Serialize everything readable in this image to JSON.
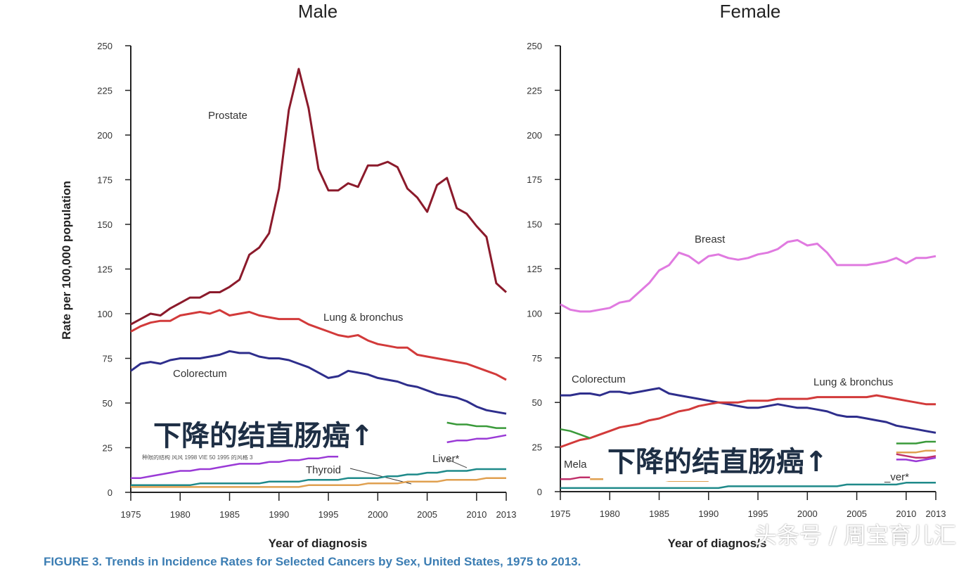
{
  "chart_data": [
    {
      "type": "line",
      "title": "Male",
      "xlabel": "Year of diagnosis",
      "ylabel": "Rate per 100,000 population",
      "xlim": [
        1975,
        2013
      ],
      "ylim": [
        0,
        250
      ],
      "xticks": [
        "1975",
        "1980",
        "1985",
        "1990",
        "1995",
        "2000",
        "2005",
        "2010",
        "2013"
      ],
      "yticks": [
        "0",
        "25",
        "50",
        "75",
        "100",
        "125",
        "150",
        "175",
        "200",
        "225",
        "250"
      ],
      "series": [
        {
          "name": "Prostate",
          "color": "#8b1a2b",
          "values": [
            94,
            97,
            100,
            99,
            103,
            106,
            109,
            109,
            112,
            112,
            115,
            119,
            133,
            137,
            145,
            170,
            214,
            237,
            215,
            181,
            169,
            169,
            173,
            171,
            183,
            183,
            185,
            182,
            170,
            165,
            157,
            172,
            176,
            159,
            156,
            149,
            143,
            117,
            112
          ]
        },
        {
          "name": "Lung & bronchus",
          "color": "#d23a3a",
          "values": [
            90,
            93,
            95,
            96,
            96,
            99,
            100,
            101,
            100,
            102,
            99,
            100,
            101,
            99,
            98,
            97,
            97,
            97,
            94,
            92,
            90,
            88,
            87,
            88,
            85,
            83,
            82,
            81,
            81,
            77,
            76,
            75,
            74,
            73,
            72,
            70,
            68,
            66,
            63
          ]
        },
        {
          "name": "Colorectum",
          "color": "#2e2e8c",
          "values": [
            68,
            72,
            73,
            72,
            74,
            75,
            75,
            75,
            76,
            77,
            79,
            78,
            78,
            76,
            75,
            75,
            74,
            72,
            70,
            67,
            64,
            65,
            68,
            67,
            66,
            64,
            63,
            62,
            60,
            59,
            57,
            55,
            54,
            53,
            51,
            48,
            46,
            45,
            44
          ]
        },
        {
          "color": "#3a9a3a",
          "values": [
            null,
            null,
            null,
            null,
            null,
            null,
            null,
            null,
            null,
            null,
            null,
            null,
            null,
            null,
            null,
            null,
            null,
            null,
            null,
            null,
            null,
            null,
            null,
            null,
            null,
            null,
            null,
            null,
            null,
            null,
            null,
            null,
            39,
            38,
            38,
            37,
            37,
            36,
            36
          ]
        },
        {
          "color": "#9a3ad6",
          "values": [
            8,
            8,
            9,
            10,
            11,
            12,
            12,
            13,
            13,
            14,
            15,
            16,
            16,
            16,
            17,
            17,
            18,
            18,
            19,
            19,
            20,
            20,
            null,
            null,
            null,
            null,
            null,
            null,
            null,
            null,
            null,
            null,
            28,
            29,
            29,
            30,
            30,
            31,
            32
          ]
        },
        {
          "name": "Liver*",
          "color": "#1f8a8a",
          "values": [
            4,
            4,
            4,
            4,
            4,
            4,
            4,
            5,
            5,
            5,
            5,
            5,
            5,
            5,
            6,
            6,
            6,
            6,
            7,
            7,
            7,
            7,
            8,
            8,
            8,
            8,
            9,
            9,
            10,
            10,
            11,
            11,
            12,
            12,
            12,
            13,
            13,
            13,
            13
          ]
        },
        {
          "name": "Thyroid",
          "color": "#e0a050",
          "values": [
            3,
            3,
            3,
            3,
            3,
            3,
            3,
            3,
            3,
            3,
            3,
            3,
            3,
            3,
            3,
            3,
            3,
            3,
            4,
            4,
            4,
            4,
            4,
            4,
            5,
            5,
            5,
            5,
            6,
            6,
            6,
            6,
            7,
            7,
            7,
            7,
            8,
            8,
            8
          ]
        }
      ]
    },
    {
      "type": "line",
      "title": "Female",
      "xlabel": "Year of diagnos/s",
      "ylabel": "",
      "xlim": [
        1975,
        2013
      ],
      "ylim": [
        0,
        250
      ],
      "xticks": [
        "1975",
        "1980",
        "1985",
        "1990",
        "1995",
        "2000",
        "2005",
        "2010",
        "2013"
      ],
      "yticks": [
        "0",
        "25",
        "50",
        "75",
        "100",
        "125",
        "150",
        "175",
        "200",
        "225",
        "250"
      ],
      "series": [
        {
          "name": "Breast",
          "color": "#e07ae0",
          "values": [
            105,
            102,
            101,
            101,
            102,
            103,
            106,
            107,
            112,
            117,
            124,
            127,
            134,
            132,
            128,
            132,
            133,
            131,
            130,
            131,
            133,
            134,
            136,
            140,
            141,
            138,
            139,
            134,
            127,
            127,
            127,
            127,
            128,
            129,
            131,
            128,
            131,
            131,
            132
          ]
        },
        {
          "name": "Colorectum",
          "color": "#2e2e8c",
          "values": [
            54,
            54,
            55,
            55,
            54,
            56,
            56,
            55,
            56,
            57,
            58,
            55,
            54,
            53,
            52,
            51,
            50,
            49,
            48,
            47,
            47,
            48,
            49,
            48,
            47,
            47,
            46,
            45,
            43,
            42,
            42,
            41,
            40,
            39,
            37,
            36,
            35,
            34,
            33
          ]
        },
        {
          "name": "Lung & bronchus",
          "color": "#d23a3a",
          "values": [
            25,
            27,
            29,
            30,
            32,
            34,
            36,
            37,
            38,
            40,
            41,
            43,
            45,
            46,
            48,
            49,
            50,
            50,
            50,
            51,
            51,
            51,
            52,
            52,
            52,
            52,
            53,
            53,
            53,
            53,
            53,
            53,
            54,
            53,
            52,
            51,
            50,
            49,
            49
          ]
        },
        {
          "color": "#3a9a3a",
          "values": [
            35,
            34,
            32,
            30,
            null,
            null,
            null,
            null,
            null,
            null,
            null,
            null,
            null,
            null,
            null,
            null,
            null,
            null,
            null,
            null,
            null,
            null,
            null,
            null,
            null,
            null,
            null,
            null,
            null,
            null,
            null,
            null,
            null,
            null,
            27,
            27,
            27,
            28,
            28
          ]
        },
        {
          "name": "Mela",
          "color": "#c0306a",
          "values": [
            7,
            7,
            8,
            8,
            null,
            null,
            null,
            null,
            null,
            null,
            null,
            null,
            null,
            null,
            null,
            null,
            null,
            null,
            null,
            null,
            null,
            null,
            null,
            null,
            null,
            null,
            null,
            null,
            null,
            null,
            null,
            null,
            null,
            null,
            21,
            20,
            19,
            19,
            20
          ]
        },
        {
          "color": "#9a3ad6",
          "values": [
            null,
            null,
            null,
            null,
            null,
            null,
            null,
            null,
            null,
            null,
            null,
            null,
            null,
            null,
            null,
            null,
            null,
            null,
            null,
            null,
            null,
            null,
            null,
            null,
            null,
            null,
            null,
            null,
            null,
            null,
            null,
            null,
            null,
            null,
            18,
            18,
            17,
            18,
            19
          ]
        },
        {
          "color": "#e0a050",
          "values": [
            null,
            null,
            null,
            7,
            7,
            7,
            7,
            7,
            7,
            7,
            7,
            6,
            6,
            6,
            6,
            6,
            null,
            null,
            null,
            null,
            null,
            null,
            null,
            null,
            null,
            null,
            null,
            null,
            null,
            null,
            null,
            null,
            null,
            null,
            22,
            22,
            22,
            23,
            23
          ]
        },
        {
          "name": "_ver*",
          "color": "#1f8a8a",
          "values": [
            2,
            2,
            2,
            2,
            2,
            2,
            2,
            2,
            2,
            2,
            2,
            2,
            2,
            2,
            2,
            2,
            2,
            3,
            3,
            3,
            3,
            3,
            3,
            3,
            3,
            3,
            3,
            3,
            3,
            4,
            4,
            4,
            4,
            4,
            4,
            5,
            5,
            5,
            5
          ]
        }
      ]
    }
  ],
  "overlay_text": "下降的结直肠癌↑",
  "male_garbled": "种限的结构 风风 1998 VIE 50 1995 的风格 3",
  "caption": "FIGURE 3. Trends in Incidence Rates for Selected Cancers by Sex, United States, 1975 to 2013.",
  "watermark": "头条号 / 周宝育儿汇"
}
